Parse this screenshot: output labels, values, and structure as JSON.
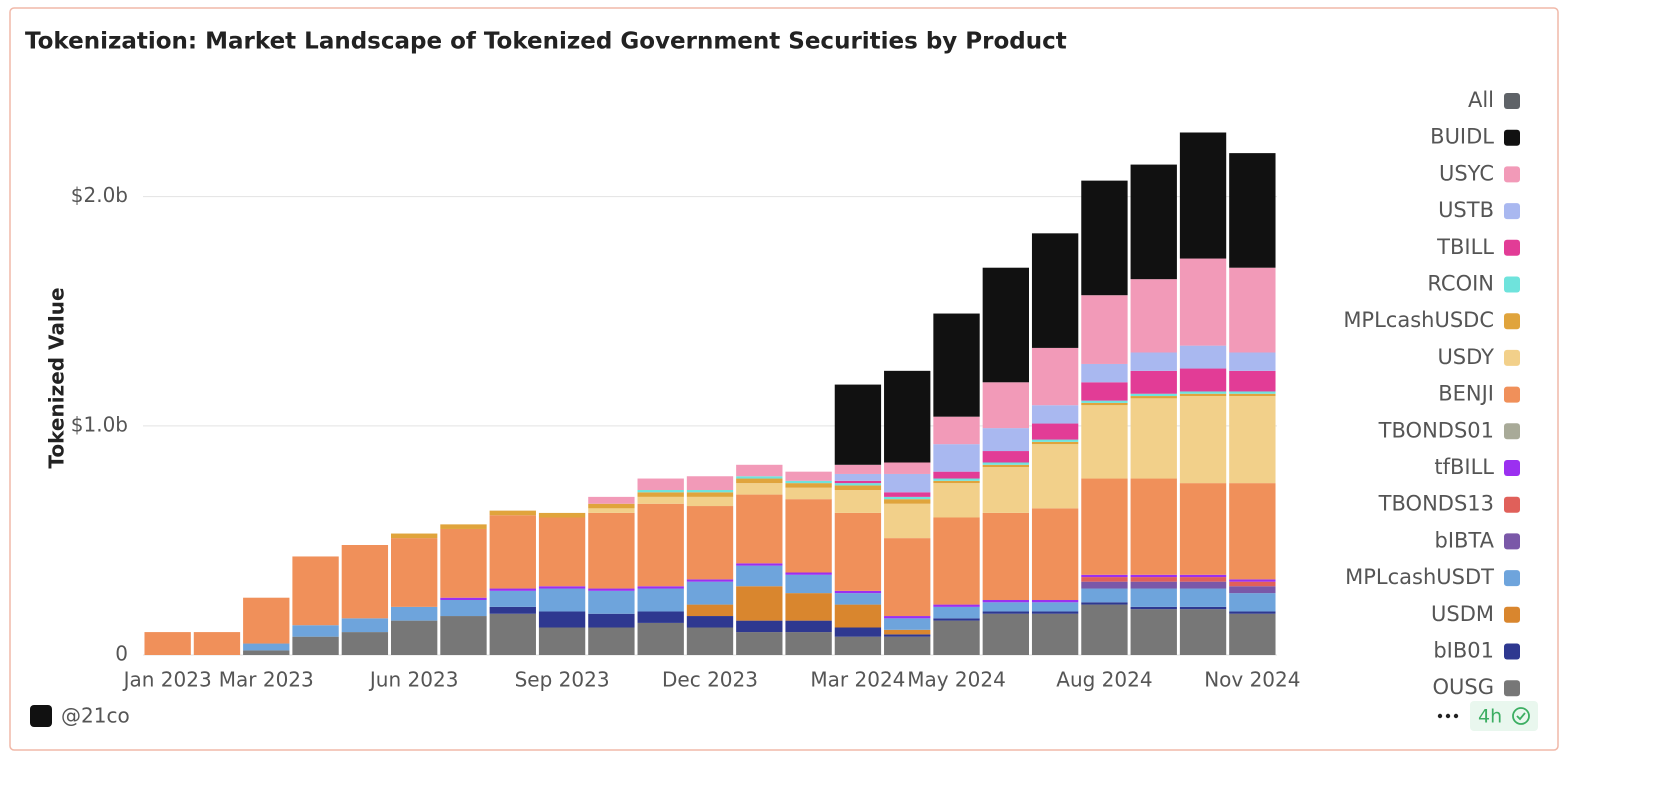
{
  "chart_data": {
    "type": "stacked_bar",
    "title": "Tokenization: Market Landscape of Tokenized Government Securities by Product",
    "y_label": "Tokenized Value",
    "categories": [
      "Jan 2023",
      null,
      "Mar 2023",
      null,
      null,
      "Jun 2023",
      null,
      null,
      "Sep 2023",
      null,
      null,
      "Dec 2023",
      null,
      null,
      "Mar 2024",
      null,
      "May 2024",
      null,
      null,
      "Aug 2024",
      null,
      null,
      "Nov 2024"
    ],
    "ylim": [
      0,
      2.4
    ],
    "yticks": [
      0,
      {
        "value": 1,
        "label": "$1.0b"
      },
      {
        "value": 2,
        "label": "$2.0b"
      }
    ],
    "grid": true,
    "series": [
      {
        "name": "All",
        "color": "#5f6368",
        "values": [
          null,
          null,
          null,
          null,
          null,
          null,
          null,
          null,
          null,
          null,
          null,
          null,
          null,
          null,
          null,
          null,
          null,
          null,
          null,
          null,
          null,
          null,
          null
        ]
      },
      {
        "name": "BUIDL",
        "color": "#111111",
        "values": [
          0,
          0,
          0,
          0,
          0,
          0,
          0,
          0,
          0,
          0,
          0,
          0,
          0,
          0,
          0.35,
          0.4,
          0.45,
          0.5,
          0.5,
          0.5,
          0.5,
          0.55,
          0.5
        ]
      },
      {
        "name": "USYC",
        "color": "#f29ab8",
        "values": [
          0,
          0,
          0,
          0,
          0,
          0,
          0,
          0,
          0,
          0.03,
          0.05,
          0.06,
          0.05,
          0.04,
          0.04,
          0.05,
          0.12,
          0.2,
          0.25,
          0.3,
          0.32,
          0.38,
          0.37
        ]
      },
      {
        "name": "USTB",
        "color": "#a9b8f0",
        "values": [
          0,
          0,
          0,
          0,
          0,
          0,
          0,
          0,
          0,
          0,
          0,
          0,
          0,
          0,
          0.03,
          0.08,
          0.12,
          0.1,
          0.08,
          0.08,
          0.08,
          0.1,
          0.08
        ]
      },
      {
        "name": "TBILL",
        "color": "#e23c96",
        "values": [
          0,
          0,
          0,
          0,
          0,
          0,
          0,
          0,
          0,
          0,
          0,
          0,
          0,
          0,
          0.01,
          0.02,
          0.03,
          0.05,
          0.07,
          0.08,
          0.1,
          0.1,
          0.09
        ]
      },
      {
        "name": "RCOIN",
        "color": "#6fe3dc",
        "values": [
          0,
          0,
          0,
          0,
          0,
          0,
          0,
          0,
          0,
          0,
          0.01,
          0.01,
          0.01,
          0.01,
          0.01,
          0.01,
          0.01,
          0.01,
          0.01,
          0.01,
          0.01,
          0.01,
          0.01
        ]
      },
      {
        "name": "MPLcashUSDC",
        "color": "#e0a43c",
        "values": [
          0,
          0,
          0,
          0,
          0,
          0.02,
          0.02,
          0.02,
          0.02,
          0.02,
          0.02,
          0.02,
          0.02,
          0.02,
          0.02,
          0.02,
          0.01,
          0.01,
          0.01,
          0.01,
          0.01,
          0.01,
          0.01
        ]
      },
      {
        "name": "USDY",
        "color": "#f2d08a",
        "values": [
          0,
          0,
          0,
          0,
          0,
          0,
          0,
          0,
          0,
          0.02,
          0.03,
          0.04,
          0.05,
          0.05,
          0.1,
          0.15,
          0.15,
          0.2,
          0.28,
          0.32,
          0.35,
          0.38,
          0.38
        ]
      },
      {
        "name": "BENJI",
        "color": "#f0905a",
        "values": [
          0.1,
          0.1,
          0.2,
          0.3,
          0.32,
          0.3,
          0.3,
          0.32,
          0.3,
          0.33,
          0.36,
          0.32,
          0.3,
          0.32,
          0.34,
          0.34,
          0.38,
          0.38,
          0.4,
          0.42,
          0.42,
          0.4,
          0.42
        ]
      },
      {
        "name": "TBONDS01",
        "color": "#a8aa98",
        "values": [
          0,
          0,
          0,
          0,
          0,
          0,
          0,
          0,
          0,
          0,
          0,
          0,
          0,
          0,
          0,
          0,
          0,
          0,
          0,
          0,
          0,
          0,
          0
        ]
      },
      {
        "name": "tfBILL",
        "color": "#9b30f0",
        "values": [
          0,
          0,
          0,
          0,
          0,
          0,
          0.01,
          0.01,
          0.01,
          0.01,
          0.01,
          0.01,
          0.01,
          0.01,
          0.01,
          0.01,
          0.01,
          0.01,
          0.01,
          0.01,
          0.01,
          0.01,
          0.01
        ]
      },
      {
        "name": "TBONDS13",
        "color": "#e0605a",
        "values": [
          0,
          0,
          0,
          0,
          0,
          0,
          0,
          0,
          0,
          0,
          0,
          0,
          0,
          0,
          0,
          0,
          0,
          0,
          0,
          0.02,
          0.02,
          0.02,
          0.02
        ]
      },
      {
        "name": "bIBTA",
        "color": "#7a58a8",
        "values": [
          0,
          0,
          0,
          0,
          0,
          0,
          0,
          0,
          0,
          0,
          0,
          0,
          0,
          0,
          0,
          0,
          0,
          0,
          0,
          0.03,
          0.03,
          0.03,
          0.03
        ]
      },
      {
        "name": "MPLcashUSDT",
        "color": "#6ea4dc",
        "values": [
          0,
          0,
          0.03,
          0.05,
          0.06,
          0.06,
          0.07,
          0.07,
          0.1,
          0.1,
          0.1,
          0.1,
          0.09,
          0.08,
          0.05,
          0.05,
          0.05,
          0.04,
          0.04,
          0.06,
          0.08,
          0.08,
          0.08
        ]
      },
      {
        "name": "USDM",
        "color": "#d9862e",
        "values": [
          0,
          0,
          0,
          0,
          0,
          0,
          0,
          0,
          0,
          0,
          0,
          0.05,
          0.15,
          0.12,
          0.1,
          0.02,
          0,
          0,
          0,
          0,
          0,
          0,
          0
        ]
      },
      {
        "name": "bIB01",
        "color": "#2e3890",
        "values": [
          0,
          0,
          0,
          0,
          0,
          0,
          0,
          0.03,
          0.07,
          0.06,
          0.05,
          0.05,
          0.05,
          0.05,
          0.04,
          0.01,
          0.01,
          0.01,
          0.01,
          0.01,
          0.01,
          0.01,
          0.01
        ]
      },
      {
        "name": "OUSG",
        "color": "#777777",
        "values": [
          0,
          0,
          0.02,
          0.08,
          0.1,
          0.15,
          0.17,
          0.18,
          0.12,
          0.12,
          0.14,
          0.12,
          0.1,
          0.1,
          0.08,
          0.08,
          0.15,
          0.18,
          0.18,
          0.22,
          0.2,
          0.2,
          0.18
        ]
      }
    ]
  },
  "footer": {
    "author": "@21co",
    "age": "4h"
  }
}
